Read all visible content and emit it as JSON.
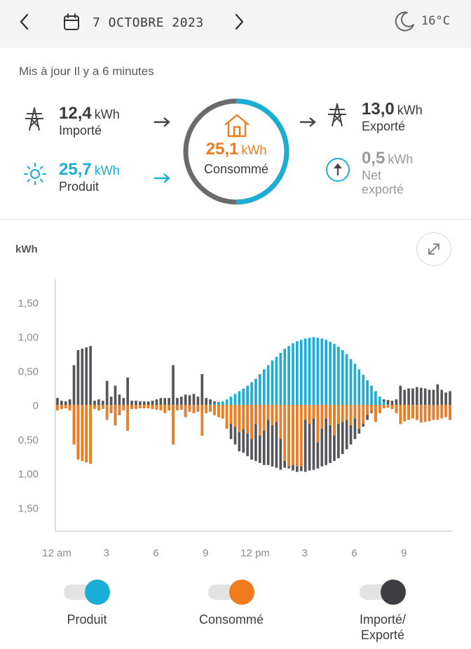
{
  "header": {
    "date": "7 OCTOBRE 2023",
    "temperature": "16°C",
    "icons": [
      "chevron-left-icon",
      "calendar-icon",
      "chevron-right-icon",
      "moon-icon"
    ]
  },
  "status": {
    "updated": "Mis à jour Il y a 6 minutes"
  },
  "flows": {
    "imported": {
      "value": "12,4",
      "unit": "kWh",
      "label": "Importé",
      "icon": "power-pylon-icon"
    },
    "produced": {
      "value": "25,7",
      "unit": "kWh",
      "label": "Produit",
      "icon": "sun-icon"
    },
    "consumed": {
      "value": "25,1",
      "unit": "kWh",
      "label": "Consommé",
      "icon": "house-icon"
    },
    "exported": {
      "value": "13,0",
      "unit": "kWh",
      "label": "Exporté",
      "icon": "power-pylon-icon"
    },
    "net": {
      "value": "0,5",
      "unit": "kWh",
      "label_line1": "Net",
      "label_line2": "exporté",
      "icon": "arrow-up-circle-icon"
    }
  },
  "colors": {
    "produced": "#1aaed6",
    "consumed": "#f07c20",
    "grid": "#555559",
    "ring_grey": "#6b6b6e"
  },
  "chart_data": {
    "type": "bar",
    "ylabel": "kWh",
    "ylim": [
      -1.85,
      1.85
    ],
    "yticks": [
      {
        "value": 1.5,
        "label": "1,50"
      },
      {
        "value": 1.0,
        "label": "1,00"
      },
      {
        "value": 0.5,
        "label": "0,50"
      },
      {
        "value": 0,
        "label": "0"
      },
      {
        "value": -0.5,
        "label": "0,50"
      },
      {
        "value": -1.0,
        "label": "1,00"
      },
      {
        "value": -1.5,
        "label": "1,50"
      }
    ],
    "xticks": [
      {
        "hour": 0,
        "label": "12 am"
      },
      {
        "hour": 3,
        "label": "3"
      },
      {
        "hour": 6,
        "label": "6"
      },
      {
        "hour": 9,
        "label": "9"
      },
      {
        "hour": 12,
        "label": "12 pm"
      },
      {
        "hour": 15,
        "label": "3"
      },
      {
        "hour": 18,
        "label": "6"
      },
      {
        "hour": 21,
        "label": "9"
      }
    ],
    "interval_minutes": 15,
    "series": [
      {
        "name": "Produit",
        "values": [
          0,
          0,
          0,
          0,
          0,
          0,
          0,
          0,
          0,
          0,
          0,
          0,
          0,
          0,
          0,
          0,
          0,
          0,
          0,
          0,
          0,
          0,
          0,
          0,
          0,
          0,
          0,
          0,
          0,
          0,
          0,
          0,
          0,
          0,
          0,
          0,
          0,
          0.01,
          0.02,
          0.03,
          0.05,
          0.08,
          0.12,
          0.16,
          0.2,
          0.24,
          0.28,
          0.33,
          0.38,
          0.45,
          0.52,
          0.58,
          0.65,
          0.7,
          0.76,
          0.82,
          0.86,
          0.9,
          0.93,
          0.95,
          0.97,
          0.98,
          0.99,
          0.98,
          0.97,
          0.95,
          0.92,
          0.89,
          0.85,
          0.8,
          0.74,
          0.67,
          0.6,
          0.52,
          0.44,
          0.36,
          0.28,
          0.2,
          0.12,
          0.05,
          0.01,
          0,
          0,
          0,
          0,
          0,
          0,
          0,
          0,
          0,
          0,
          0,
          0,
          0,
          0,
          0
        ]
      },
      {
        "name": "Consommé",
        "values": [
          -0.08,
          -0.06,
          -0.05,
          -0.08,
          -0.58,
          -0.8,
          -0.82,
          -0.84,
          -0.86,
          -0.06,
          -0.08,
          -0.06,
          -0.22,
          -0.12,
          -0.3,
          -0.15,
          -0.08,
          -0.38,
          -0.06,
          -0.06,
          -0.05,
          -0.05,
          -0.05,
          -0.06,
          -0.07,
          -0.08,
          -0.12,
          -0.08,
          -0.58,
          -0.08,
          -0.07,
          -0.18,
          -0.1,
          -0.12,
          -0.1,
          -0.45,
          -0.12,
          -0.1,
          -0.15,
          -0.18,
          -0.2,
          -0.35,
          -0.28,
          -0.32,
          -0.4,
          -0.36,
          -0.42,
          -0.5,
          -0.28,
          -0.45,
          -0.38,
          -0.22,
          -0.3,
          -0.25,
          -0.5,
          -0.82,
          -0.9,
          -0.88,
          -0.9,
          -0.9,
          -0.22,
          -0.28,
          -0.2,
          -0.55,
          -0.35,
          -0.2,
          -0.3,
          -0.45,
          -0.28,
          -0.25,
          -0.22,
          -0.3,
          -0.2,
          -0.35,
          -0.28,
          -0.15,
          -0.1,
          -0.25,
          -0.12,
          -0.05,
          -0.04,
          -0.06,
          -0.12,
          -0.28,
          -0.24,
          -0.22,
          -0.2,
          -0.22,
          -0.26,
          -0.25,
          -0.24,
          -0.22,
          -0.22,
          -0.2,
          -0.18,
          -0.22
        ]
      },
      {
        "name": "Importé/Exporté",
        "imported": [
          -0.08,
          -0.06,
          -0.05,
          -0.08,
          -0.58,
          -0.8,
          -0.82,
          -0.84,
          -0.86,
          -0.06,
          -0.08,
          -0.06,
          -0.22,
          -0.12,
          -0.3,
          -0.15,
          -0.08,
          -0.38,
          -0.06,
          -0.06,
          -0.05,
          -0.05,
          -0.05,
          -0.06,
          -0.07,
          -0.08,
          -0.12,
          -0.08,
          -0.58,
          -0.08,
          -0.07,
          -0.18,
          -0.1,
          -0.12,
          -0.1,
          -0.45,
          -0.12,
          -0.1,
          -0.15,
          -0.18,
          -0.2,
          -0.35,
          -0.5,
          -0.58,
          -0.68,
          -0.7,
          -0.75,
          -0.8,
          -0.82,
          -0.85,
          -0.88,
          -0.88,
          -0.9,
          -0.92,
          -0.95,
          -0.92,
          -0.93,
          -0.96,
          -0.98,
          -0.97,
          -0.98,
          -0.96,
          -0.95,
          -0.93,
          -0.9,
          -0.88,
          -0.85,
          -0.82,
          -0.78,
          -0.72,
          -0.65,
          -0.58,
          -0.5,
          -0.42,
          -0.32,
          -0.22,
          -0.12,
          -0.25,
          -0.12,
          -0.05,
          -0.04,
          -0.06,
          -0.12,
          -0.28,
          -0.24,
          -0.22,
          -0.2,
          -0.22,
          -0.26,
          -0.25,
          -0.24,
          -0.22,
          -0.22,
          -0.2,
          -0.18,
          -0.22
        ],
        "exported": [
          0.1,
          0.06,
          0.05,
          0.08,
          0.58,
          0.8,
          0.82,
          0.84,
          0.86,
          0.06,
          0.08,
          0.06,
          0.35,
          0.12,
          0.28,
          0.15,
          0.1,
          0.4,
          0.06,
          0.06,
          0.05,
          0.05,
          0.05,
          0.06,
          0.08,
          0.1,
          0.1,
          0.1,
          0.58,
          0.1,
          0.12,
          0.15,
          0.14,
          0.16,
          0.12,
          0.45,
          0.1,
          0.08,
          0.05,
          0.04,
          0.03,
          0,
          0,
          0,
          0,
          0,
          0,
          0,
          0,
          0,
          0,
          0,
          0,
          0,
          0,
          0,
          0,
          0,
          0,
          0,
          0,
          0,
          0,
          0,
          0,
          0,
          0,
          0,
          0,
          0,
          0,
          0,
          0,
          0,
          0,
          0,
          0,
          0.05,
          0.08,
          0.08,
          0.07,
          0.06,
          0.08,
          0.28,
          0.22,
          0.24,
          0.24,
          0.26,
          0.25,
          0.24,
          0.22,
          0.22,
          0.3,
          0.22,
          0.18,
          0.2
        ]
      }
    ],
    "legend": [
      "Produit",
      "Consommé",
      "Importé/Exporté"
    ]
  },
  "legend": {
    "produced": "Produit",
    "consumed": "Consommé",
    "grid_line1": "Importé/",
    "grid_line2": "Exporté"
  }
}
